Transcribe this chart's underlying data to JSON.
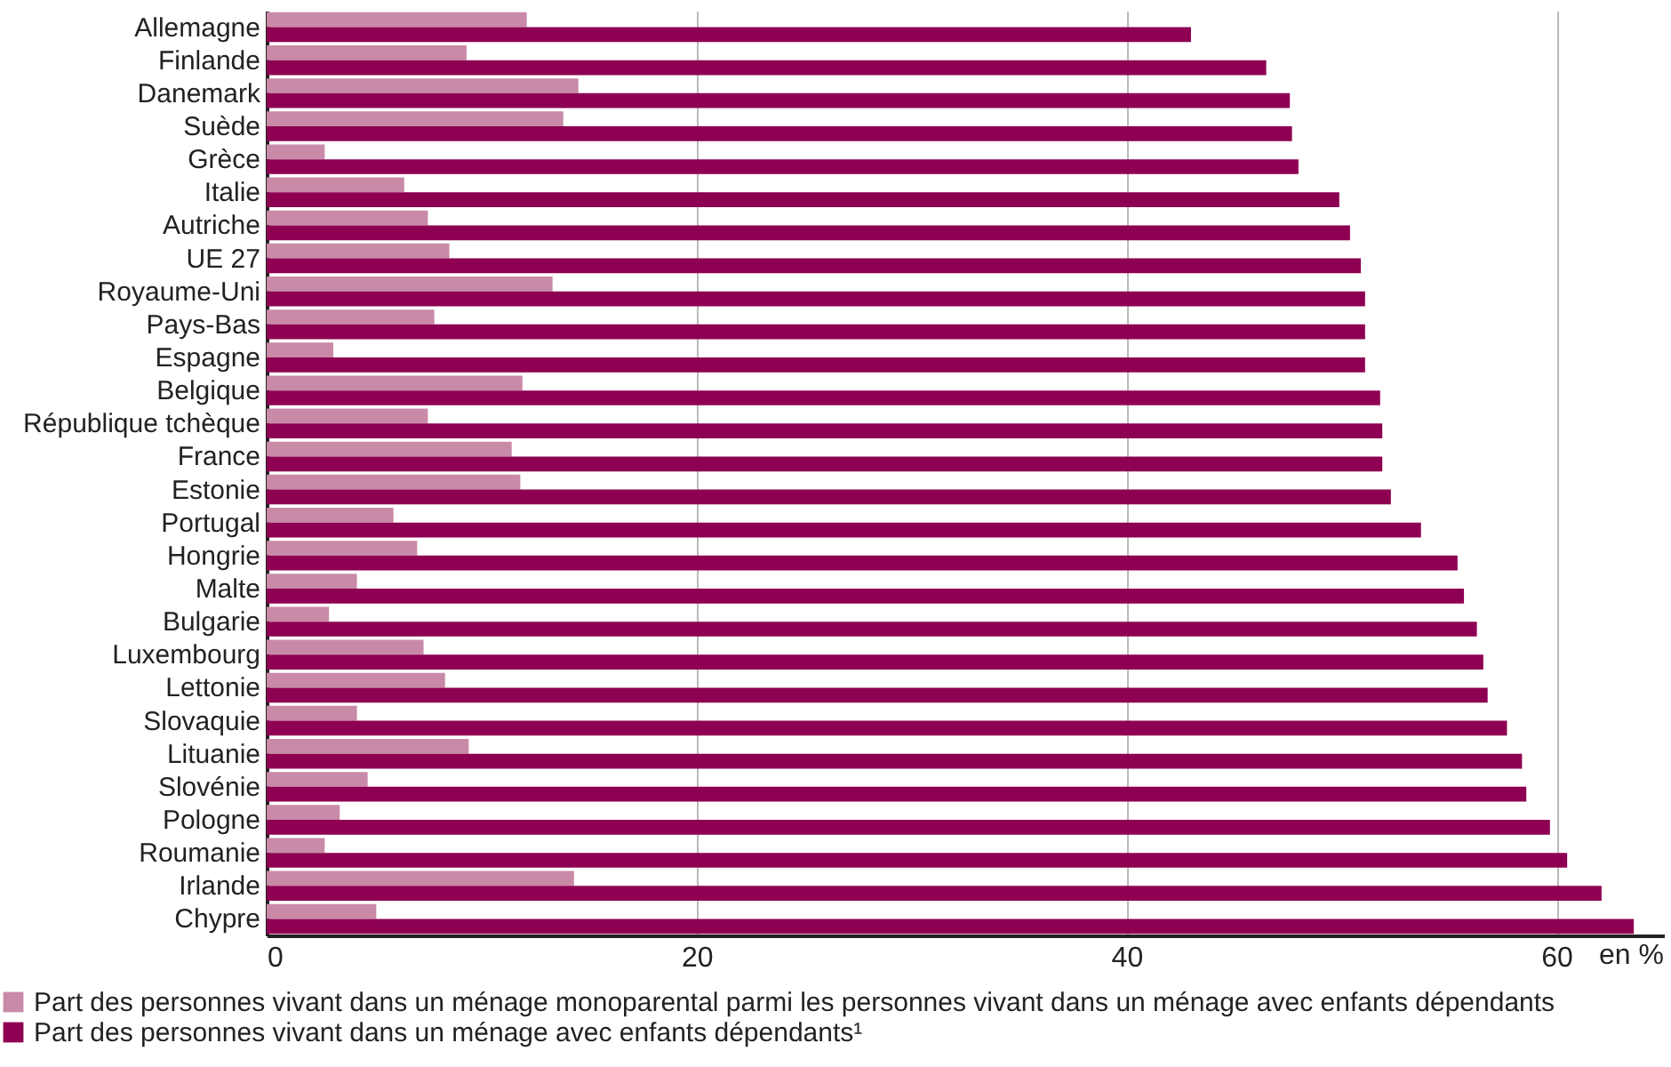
{
  "chart_data": {
    "type": "bar",
    "orientation": "horizontal",
    "xlabel": "en %",
    "categories": [
      "Allemagne",
      "Finlande",
      "Danemark",
      "Suède",
      "Grèce",
      "Italie",
      "Autriche",
      "UE 27",
      "Royaume-Uni",
      "Pays-Bas",
      "Espagne",
      "Belgique",
      "République tchèque",
      "France",
      "Estonie",
      "Portugal",
      "Hongrie",
      "Malte",
      "Bulgarie",
      "Luxembourg",
      "Lettonie",
      "Slovaquie",
      "Lituanie",
      "Slovénie",
      "Pologne",
      "Roumanie",
      "Irlande",
      "Chypre"
    ],
    "series": [
      {
        "name": "Part des personnes vivant dans un ménage monoparental parmi les personnes vivant dans un ménage avec enfants dépendants",
        "color": "#c98aa8",
        "values": [
          12.1,
          9.3,
          14.5,
          13.8,
          2.7,
          6.4,
          7.5,
          8.5,
          13.3,
          7.8,
          3.1,
          11.9,
          7.5,
          11.4,
          11.8,
          5.9,
          7.0,
          4.2,
          2.9,
          7.3,
          8.3,
          4.2,
          9.4,
          4.7,
          3.4,
          2.7,
          14.3,
          5.1
        ]
      },
      {
        "name": "Part des personnes vivant dans un ménage avec enfants dépendants¹",
        "color": "#8e0052",
        "values": [
          43.0,
          46.5,
          47.6,
          47.7,
          48.0,
          49.9,
          50.4,
          50.9,
          51.1,
          51.1,
          51.1,
          51.8,
          51.9,
          51.9,
          52.3,
          53.7,
          55.4,
          55.7,
          56.3,
          56.6,
          56.8,
          57.7,
          58.4,
          58.6,
          59.7,
          60.5,
          62.1,
          63.6
        ]
      }
    ],
    "xlim": [
      0,
      65
    ],
    "xticks": [
      0,
      20,
      40,
      60
    ],
    "grid": "x",
    "legend": "bottom left"
  }
}
